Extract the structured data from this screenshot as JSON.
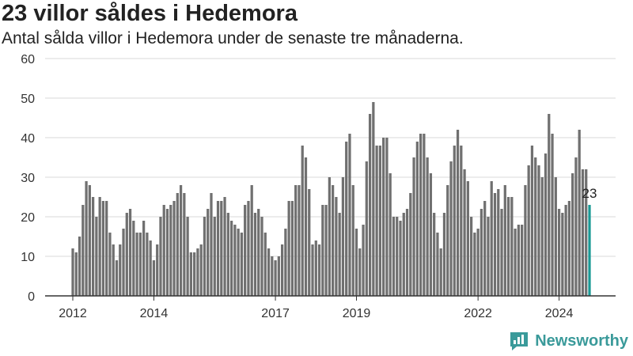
{
  "header": {
    "title": "23 villor såldes i Hedemora",
    "subtitle": "Antal sålda villor i Hedemora under de senaste tre månaderna."
  },
  "brand": {
    "name": "Newsworthy",
    "icon": "bar-chart-speech-icon",
    "color": "#3a9a9a"
  },
  "chart_data": {
    "type": "bar",
    "title": "23 villor såldes i Hedemora",
    "subtitle": "Antal sålda villor i Hedemora under de senaste tre månaderna.",
    "xlabel": "",
    "ylabel": "",
    "ylim": [
      0,
      60
    ],
    "yticks": [
      0,
      10,
      20,
      30,
      40,
      50,
      60
    ],
    "xticks": [
      "2012",
      "2014",
      "2017",
      "2019",
      "2022",
      "2024"
    ],
    "grid": true,
    "bar_color": "#707070",
    "highlight_color": "#1a9a96",
    "annotation": "23",
    "values": [
      12,
      11,
      15,
      23,
      29,
      28,
      25,
      20,
      25,
      24,
      24,
      16,
      13,
      9,
      13,
      17,
      21,
      22,
      19,
      16,
      16,
      19,
      16,
      14,
      9,
      13,
      20,
      23,
      22,
      23,
      24,
      26,
      28,
      26,
      20,
      11,
      11,
      12,
      13,
      20,
      22,
      26,
      20,
      24,
      24,
      25,
      21,
      19,
      18,
      17,
      16,
      23,
      24,
      28,
      21,
      22,
      20,
      16,
      12,
      10,
      9,
      10,
      13,
      17,
      24,
      24,
      28,
      28,
      38,
      35,
      27,
      13,
      14,
      13,
      23,
      23,
      30,
      28,
      25,
      21,
      30,
      39,
      41,
      28,
      17,
      12,
      18,
      34,
      46,
      49,
      38,
      38,
      40,
      40,
      31,
      20,
      20,
      19,
      21,
      22,
      26,
      35,
      39,
      41,
      41,
      35,
      31,
      21,
      16,
      12,
      21,
      28,
      34,
      38,
      42,
      38,
      32,
      29,
      20,
      16,
      17,
      22,
      24,
      20,
      29,
      26,
      27,
      22,
      28,
      25,
      25,
      17,
      18,
      18,
      28,
      33,
      38,
      35,
      33,
      30,
      36,
      46,
      41,
      30,
      22,
      21,
      23,
      24,
      31,
      35,
      42,
      32,
      32,
      23
    ]
  }
}
